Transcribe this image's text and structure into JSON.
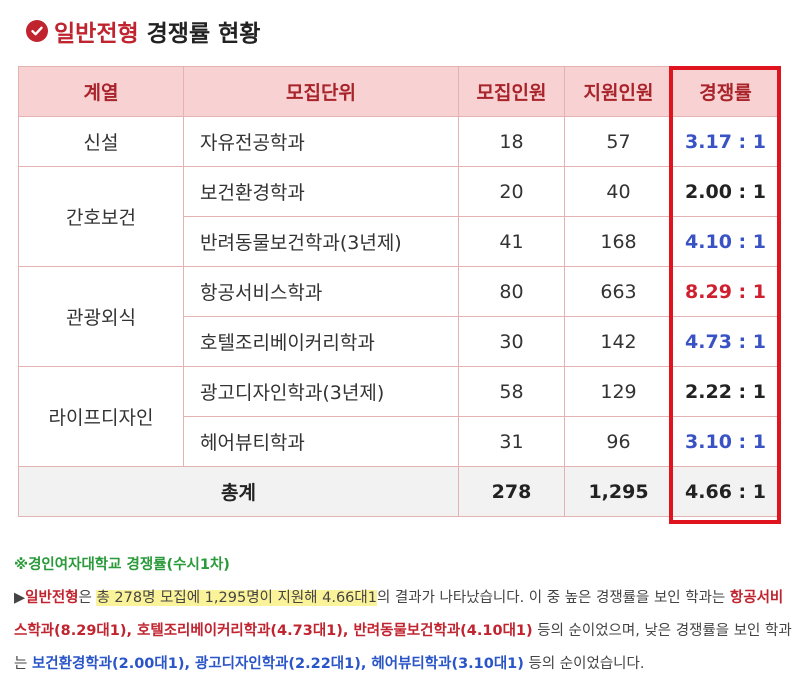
{
  "title": {
    "highlight": "일반전형",
    "rest": "경쟁률 현황"
  },
  "table": {
    "headers": [
      "계열",
      "모집단위",
      "모집인원",
      "지원인원",
      "경쟁률"
    ],
    "colors": {
      "blue": "#3a53c4",
      "red": "#d01f2e",
      "black": "#222222"
    },
    "rows": [
      {
        "category": "신설",
        "major": "자유전공학과",
        "recruit": "18",
        "applicants": "57",
        "ratio": "3.17 : 1",
        "ratio_color": "blue"
      },
      {
        "category": "간호보건",
        "major": "보건환경학과",
        "recruit": "20",
        "applicants": "40",
        "ratio": "2.00 : 1",
        "ratio_color": "black"
      },
      {
        "category": "",
        "major": "반려동물보건학과(3년제)",
        "recruit": "41",
        "applicants": "168",
        "ratio": "4.10 : 1",
        "ratio_color": "blue"
      },
      {
        "category": "관광외식",
        "major": "항공서비스학과",
        "recruit": "80",
        "applicants": "663",
        "ratio": "8.29 : 1",
        "ratio_color": "red"
      },
      {
        "category": "",
        "major": "호텔조리베이커리학과",
        "recruit": "30",
        "applicants": "142",
        "ratio": "4.73 : 1",
        "ratio_color": "blue"
      },
      {
        "category": "라이프디자인",
        "major": "광고디자인학과(3년제)",
        "recruit": "58",
        "applicants": "129",
        "ratio": "2.22 : 1",
        "ratio_color": "black"
      },
      {
        "category": "",
        "major": "헤어뷰티학과",
        "recruit": "31",
        "applicants": "96",
        "ratio": "3.10 : 1",
        "ratio_color": "blue"
      }
    ],
    "total": {
      "label": "총계",
      "recruit": "278",
      "applicants": "1,295",
      "ratio": "4.66 : 1"
    }
  },
  "note": {
    "heading": "※경인여자대학교 경쟁률(수시1차)",
    "arrow": "▶",
    "p_highlight_red": "일반전형",
    "p_text1": "은 ",
    "p_highlight_yellow": "총 278명 모집에 1,295명이 지원해 4.66대1",
    "p_text2": "의 결과가 나타났습니다. 이 중 높은 경쟁률을 보인 학과는 ",
    "high_majors": "항공서비스학과(8.29대1), 호텔조리베이커리학과(4.73대1), 반려동물보건학과(4.10대1)",
    "p_text3": " 등의 순이었으며, 낮은 경쟁률을 보인 학과는 ",
    "low_majors": "보건환경학과(2.00대1), 광고디자인학과(2.22대1), 헤어뷰티학과(3.10대1)",
    "p_text4": " 등의 순이었습니다."
  }
}
